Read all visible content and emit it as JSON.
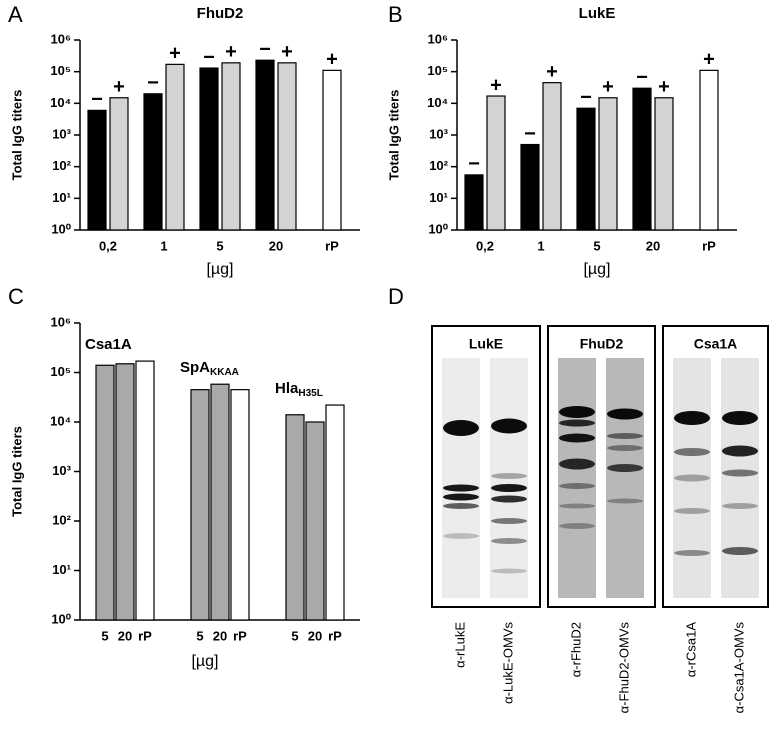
{
  "chart_data": [
    {
      "type": "bar",
      "panel": "A",
      "title": "FhuD2",
      "ylabel": "Total IgG titers",
      "xlabel": "[µg]",
      "log_scale": true,
      "categories": [
        "0,2",
        "1",
        "5",
        "20",
        "rP"
      ],
      "series": [
        {
          "name": "−",
          "color": "#000000",
          "values": [
            6000,
            20000,
            130000,
            230000,
            null
          ]
        },
        {
          "name": "+",
          "color": "#d3d3d3",
          "values": [
            15000,
            170000,
            190000,
            190000,
            null
          ]
        },
        {
          "name": "+",
          "color": "#ffffff",
          "values": [
            null,
            null,
            null,
            null,
            110000
          ]
        }
      ],
      "ylim": [
        1,
        1000000
      ],
      "yticks": [
        {
          "value": 1,
          "label": "10⁰"
        },
        {
          "value": 10,
          "label": "10¹"
        },
        {
          "value": 100,
          "label": "10²"
        },
        {
          "value": 1000,
          "label": "10³"
        },
        {
          "value": 10000,
          "label": "10⁴"
        },
        {
          "value": 100000,
          "label": "10⁵"
        },
        {
          "value": 1000000,
          "label": "10⁶"
        }
      ]
    },
    {
      "type": "bar",
      "panel": "B",
      "title": "LukE",
      "ylabel": "Total IgG titers",
      "xlabel": "[µg]",
      "log_scale": true,
      "categories": [
        "0,2",
        "1",
        "5",
        "20",
        "rP"
      ],
      "series": [
        {
          "name": "−",
          "color": "#000000",
          "values": [
            55,
            500,
            7000,
            30000,
            null
          ]
        },
        {
          "name": "+",
          "color": "#d3d3d3",
          "values": [
            17000,
            45000,
            15000,
            15000,
            null
          ]
        },
        {
          "name": "+",
          "color": "#ffffff",
          "values": [
            null,
            null,
            null,
            null,
            110000
          ]
        }
      ],
      "ylim": [
        1,
        1000000
      ],
      "yticks": [
        {
          "value": 1,
          "label": "10⁰"
        },
        {
          "value": 10,
          "label": "10¹"
        },
        {
          "value": 100,
          "label": "10²"
        },
        {
          "value": 1000,
          "label": "10³"
        },
        {
          "value": 10000,
          "label": "10⁴"
        },
        {
          "value": 100000,
          "label": "10⁵"
        },
        {
          "value": 1000000,
          "label": "10⁶"
        }
      ]
    },
    {
      "type": "grouped-bar",
      "panel": "C",
      "ylabel": "Total IgG titers",
      "xlabel": "[µg]",
      "log_scale": true,
      "groups": [
        {
          "name": "Csa1A"
        },
        {
          "name": "SpA",
          "subscript": "KKAA"
        },
        {
          "name": "Hla",
          "subscript": "H35L"
        }
      ],
      "categories": [
        "5",
        "20",
        "rP",
        "5",
        "20",
        "rP",
        "5",
        "20",
        "rP"
      ],
      "values": [
        140000,
        150000,
        170000,
        45000,
        58000,
        45000,
        14000,
        10000,
        22000
      ],
      "colors": [
        "#a9a9a9",
        "#a9a9a9",
        "#ffffff",
        "#a9a9a9",
        "#a9a9a9",
        "#ffffff",
        "#a9a9a9",
        "#a9a9a9",
        "#ffffff"
      ],
      "ylim": [
        1,
        1000000
      ],
      "yticks": [
        {
          "value": 1,
          "label": "10⁰"
        },
        {
          "value": 10,
          "label": "10¹"
        },
        {
          "value": 100,
          "label": "10²"
        },
        {
          "value": 1000,
          "label": "10³"
        },
        {
          "value": 10000,
          "label": "10⁴"
        },
        {
          "value": 100000,
          "label": "10⁵"
        },
        {
          "value": 1000000,
          "label": "10⁶"
        }
      ]
    }
  ],
  "blot": {
    "panel": "D",
    "groups": [
      {
        "title": "LukE",
        "lanes": [
          "α-rLukE",
          "α-LukE-OMVs"
        ]
      },
      {
        "title": "FhuD2",
        "lanes": [
          "α-rFhuD2",
          "α-FhuD2-OMVs"
        ]
      },
      {
        "title": "Csa1A",
        "lanes": [
          "α-rCsa1A",
          "α-Csa1A-OMVs"
        ]
      }
    ]
  }
}
